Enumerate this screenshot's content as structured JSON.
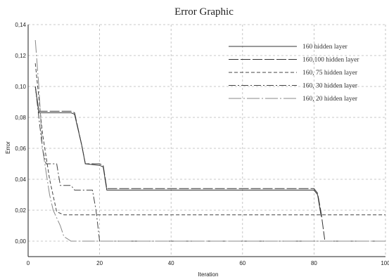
{
  "chart_data": {
    "type": "line",
    "title": "Error Graphic",
    "xlabel": "Iteration",
    "ylabel": "Error",
    "xlim": [
      0,
      100
    ],
    "ylim": [
      -0.01,
      0.14
    ],
    "x_ticks": [
      "0",
      "20",
      "40",
      "60",
      "80",
      "100"
    ],
    "y_ticks": [
      "0,00",
      "0,02",
      "0,04",
      "0,06",
      "0,08",
      "0,10",
      "0,12",
      "0,14"
    ],
    "grid": true,
    "legend_position": "top-right",
    "series": [
      {
        "name": "160 hidden layer",
        "color": "#333333",
        "dash": "solid",
        "x": [
          2,
          3,
          12,
          13,
          15,
          16,
          20,
          21,
          22,
          80,
          81,
          82
        ],
        "y": [
          0.1,
          0.083,
          0.083,
          0.082,
          0.062,
          0.05,
          0.049,
          0.048,
          0.033,
          0.033,
          0.03,
          0.016
        ]
      },
      {
        "name": "160,100 hidden layer",
        "color": "#333333",
        "dash": "long",
        "x": [
          2,
          3,
          12,
          13,
          15,
          16,
          20,
          21,
          22,
          80,
          81,
          82,
          83
        ],
        "y": [
          0.1,
          0.084,
          0.084,
          0.083,
          0.062,
          0.05,
          0.05,
          0.049,
          0.034,
          0.034,
          0.031,
          0.018,
          0.001
        ]
      },
      {
        "name": "160, 75 hidden layer",
        "color": "#444444",
        "dash": "short",
        "x": [
          2,
          4,
          6,
          8,
          10,
          100
        ],
        "y": [
          0.115,
          0.07,
          0.04,
          0.019,
          0.017,
          0.017
        ]
      },
      {
        "name": "160, 30 hidden layer",
        "color": "#444444",
        "dash": "dashdot",
        "x": [
          2,
          4,
          5,
          8,
          9,
          12,
          13,
          18,
          19,
          20,
          100
        ],
        "y": [
          0.1,
          0.06,
          0.05,
          0.05,
          0.036,
          0.036,
          0.033,
          0.033,
          0.02,
          0.0,
          0.0
        ]
      },
      {
        "name": "160, 20 hidden layer",
        "color": "#888888",
        "dash": "longdot",
        "x": [
          2,
          3,
          4,
          6,
          7,
          9,
          10,
          12,
          100
        ],
        "y": [
          0.13,
          0.1,
          0.06,
          0.03,
          0.02,
          0.01,
          0.003,
          0.0,
          0.0
        ]
      }
    ]
  }
}
